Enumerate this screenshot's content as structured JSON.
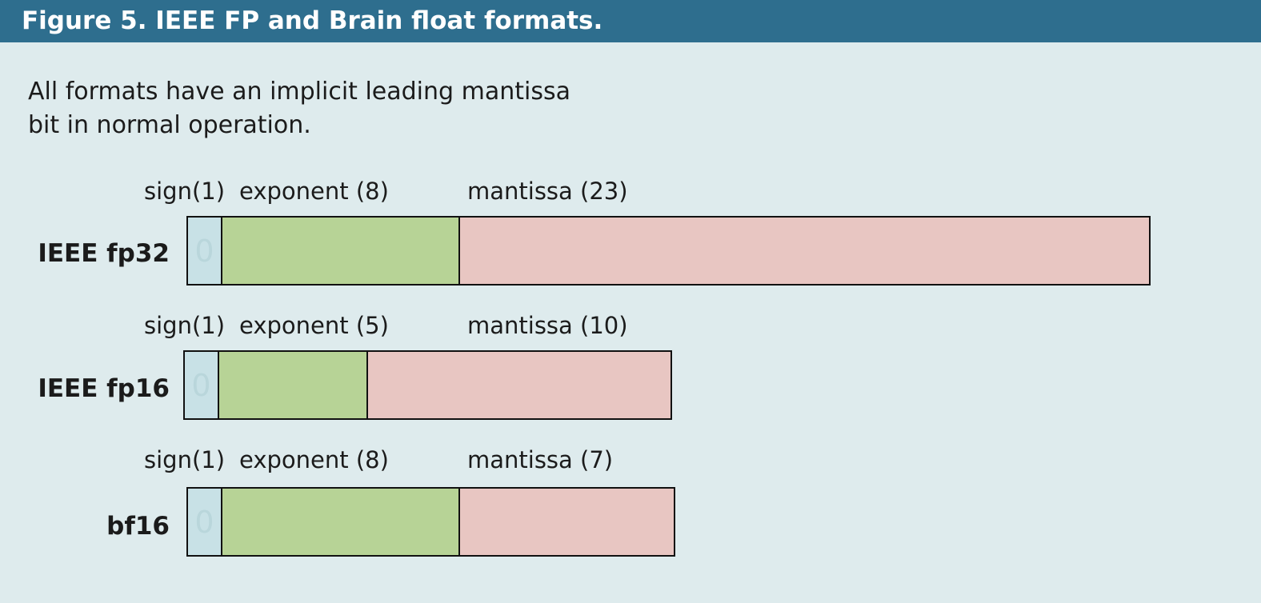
{
  "header": {
    "title": "Figure 5. IEEE FP and Brain float formats."
  },
  "subtitle": "All formats have an implicit leading mantissa bit in normal operation.",
  "colors": {
    "header_bg": "#2e6e8e",
    "background": "#deebed",
    "sign_fill": "#c8e1e6",
    "exponent_fill": "#b7d396",
    "mantissa_fill": "#e8c6c2",
    "sign_digit": "#b9d6db"
  },
  "formats": [
    {
      "name": "IEEE fp32",
      "sign_label": "sign(1)",
      "exponent_label": "exponent (8)",
      "mantissa_label": "mantissa (23)",
      "sign_value": "0"
    },
    {
      "name": "IEEE fp16",
      "sign_label": "sign(1)",
      "exponent_label": "exponent (5)",
      "mantissa_label": "mantissa (10)",
      "sign_value": "0"
    },
    {
      "name": "bf16",
      "sign_label": "sign(1)",
      "exponent_label": "exponent (8)",
      "mantissa_label": "mantissa (7)",
      "sign_value": "0"
    }
  ]
}
